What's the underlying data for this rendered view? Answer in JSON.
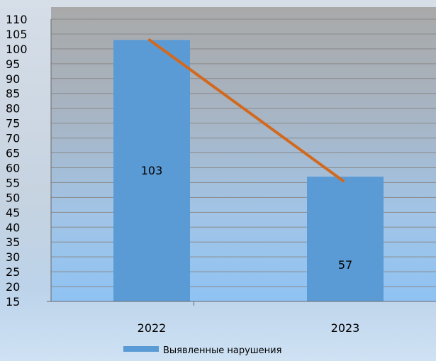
{
  "chart_data": {
    "type": "bar",
    "categories": [
      "2022",
      "2023"
    ],
    "series": [
      {
        "name": "Выявленные нарушения",
        "values": [
          103,
          57
        ],
        "color": "#5b9bd5"
      }
    ],
    "trend_line": {
      "values": [
        103,
        57
      ],
      "color": "#d2691e"
    },
    "data_labels": [
      "103",
      "57"
    ],
    "ylim": [
      15,
      110
    ],
    "yticks": [
      15,
      20,
      25,
      30,
      35,
      40,
      45,
      50,
      55,
      60,
      65,
      70,
      75,
      80,
      85,
      90,
      95,
      100,
      105,
      110
    ],
    "grid": true,
    "legend_position": "bottom-center",
    "title": "",
    "xlabel": "",
    "ylabel": ""
  },
  "colors": {
    "bar": "#5b9bd5",
    "trend": "#d2691e",
    "grid": "#8a8a8a"
  }
}
